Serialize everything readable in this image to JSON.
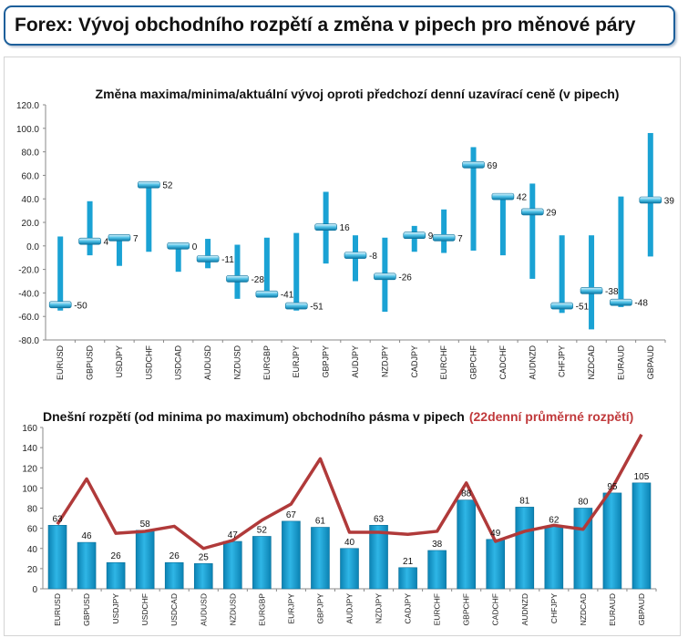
{
  "page_title": "Forex: Vývoj obchodního rozpětí a změna v pipech pro měnové páry",
  "chart_data": [
    {
      "type": "range",
      "title": "Změna maxima/minima/aktuální vývoj oproti předchozí denní uzavírací ceně (v pipech)",
      "ylim": [
        -80,
        120
      ],
      "y_ticks": [
        "120.0",
        "100.0",
        "80.0",
        "60.0",
        "40.0",
        "20.0",
        "0.0",
        "-20.0",
        "-40.0",
        "-60.0",
        "-80.0"
      ],
      "categories": [
        "EURUSD",
        "GBPUSD",
        "USDJPY",
        "USDCHF",
        "USDCAD",
        "AUDUSD",
        "NZDUSD",
        "EURGBP",
        "EURJPY",
        "GBPJPY",
        "AUDJPY",
        "NZDJPY",
        "CADJPY",
        "EURCHF",
        "GBPCHF",
        "CADCHF",
        "AUDNZD",
        "CHFJPY",
        "NZDCAD",
        "EURAUD",
        "GBPAUD"
      ],
      "high": [
        8,
        38,
        9,
        53,
        2,
        6,
        1,
        7,
        11,
        46,
        9,
        7,
        17,
        31,
        84,
        43,
        53,
        9,
        9,
        42,
        96
      ],
      "low": [
        -55,
        -8,
        -17,
        -5,
        -22,
        -19,
        -45,
        -43,
        -55,
        -15,
        -30,
        -56,
        -5,
        -6,
        -4,
        -8,
        -28,
        -57,
        -71,
        -52,
        -9
      ],
      "current": [
        -50,
        4,
        7,
        52,
        0,
        -11,
        -28,
        -41,
        -51,
        16,
        -8,
        -26,
        9,
        7,
        69,
        42,
        29,
        -51,
        -38,
        -48,
        39
      ],
      "labels": [
        "-50",
        "4",
        "7",
        "52",
        "0",
        "-11",
        "-28",
        "-41",
        "-51",
        "16",
        "-8",
        "-26",
        "9",
        "7",
        "69",
        "42",
        "29",
        "-51",
        "-38",
        "-48",
        "39"
      ]
    },
    {
      "type": "bar+line",
      "title": "Dnešní rozpětí (od minima po maximum) obchodního pásma v pipech",
      "title_highlight": "(22denní průměrné rozpětí)",
      "ylim": [
        0,
        160
      ],
      "y_ticks": [
        "160",
        "140",
        "120",
        "100",
        "80",
        "60",
        "40",
        "20",
        "0"
      ],
      "categories": [
        "EURUSD",
        "GBPUSD",
        "USDJPY",
        "USDCHF",
        "USDCAD",
        "AUDUSD",
        "NZDUSD",
        "EURGBP",
        "EURJPY",
        "GBPJPY",
        "AUDJPY",
        "NZDJPY",
        "CADJPY",
        "EURCHF",
        "GBPCHF",
        "CADCHF",
        "AUDNZD",
        "CHFJPY",
        "NZDCAD",
        "EURAUD",
        "GBPAUD"
      ],
      "values": [
        63,
        46,
        26,
        58,
        26,
        25,
        47,
        52,
        67,
        61,
        40,
        63,
        21,
        38,
        88,
        49,
        81,
        62,
        80,
        95,
        105
      ],
      "labels": [
        "63",
        "46",
        "26",
        "58",
        "26",
        "25",
        "47",
        "52",
        "67",
        "61",
        "40",
        "63",
        "21",
        "38",
        "88",
        "49",
        "81",
        "62",
        "80",
        "95",
        "105"
      ],
      "avg_22d": [
        64,
        109,
        55,
        57,
        62,
        40,
        48,
        68,
        84,
        129,
        56,
        56,
        54,
        57,
        105,
        47,
        57,
        63,
        59,
        100,
        153
      ]
    }
  ],
  "colors": {
    "bar": "#1aa2d4",
    "bar_dark": "#0b7fae",
    "avg_line": "#b03a3a",
    "highlight_text": "#c0393b",
    "header_border": "#1d5f9a"
  }
}
